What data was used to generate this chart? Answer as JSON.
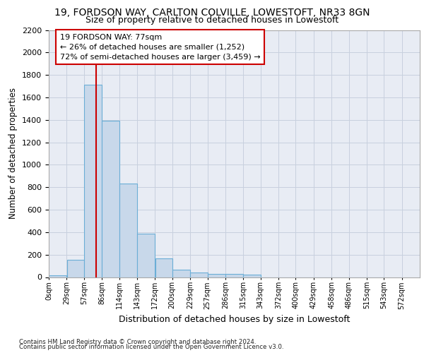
{
  "title1": "19, FORDSON WAY, CARLTON COLVILLE, LOWESTOFT, NR33 8GN",
  "title2": "Size of property relative to detached houses in Lowestoft",
  "xlabel": "Distribution of detached houses by size in Lowestoft",
  "ylabel": "Number of detached properties",
  "bar_values": [
    15,
    155,
    1710,
    1390,
    835,
    385,
    165,
    65,
    38,
    30,
    30,
    20,
    0,
    0,
    0,
    0,
    0,
    0,
    0
  ],
  "bin_edges": [
    0,
    29,
    57,
    86,
    114,
    143,
    172,
    200,
    229,
    257,
    286,
    315,
    343,
    372,
    400,
    429,
    458,
    486,
    515,
    543
  ],
  "tick_labels": [
    "0sqm",
    "29sqm",
    "57sqm",
    "86sqm",
    "114sqm",
    "143sqm",
    "172sqm",
    "200sqm",
    "229sqm",
    "257sqm",
    "286sqm",
    "315sqm",
    "343sqm",
    "372sqm",
    "400sqm",
    "429sqm",
    "458sqm",
    "486sqm",
    "515sqm",
    "543sqm",
    "572sqm"
  ],
  "property_size": 77,
  "bar_color": "#c8d8ea",
  "bar_edge_color": "#6baed6",
  "vline_color": "#cc0000",
  "annotation_line1": "19 FORDSON WAY: 77sqm",
  "annotation_line2": "← 26% of detached houses are smaller (1,252)",
  "annotation_line3": "72% of semi-detached houses are larger (3,459) →",
  "annotation_box_color": "#ffffff",
  "annotation_box_edge": "#cc0000",
  "grid_color": "#c8d0de",
  "background_color": "#e8ecf4",
  "ylim": [
    0,
    2200
  ],
  "yticks": [
    0,
    200,
    400,
    600,
    800,
    1000,
    1200,
    1400,
    1600,
    1800,
    2000,
    2200
  ],
  "footer_line1": "Contains HM Land Registry data © Crown copyright and database right 2024.",
  "footer_line2": "Contains public sector information licensed under the Open Government Licence v3.0."
}
